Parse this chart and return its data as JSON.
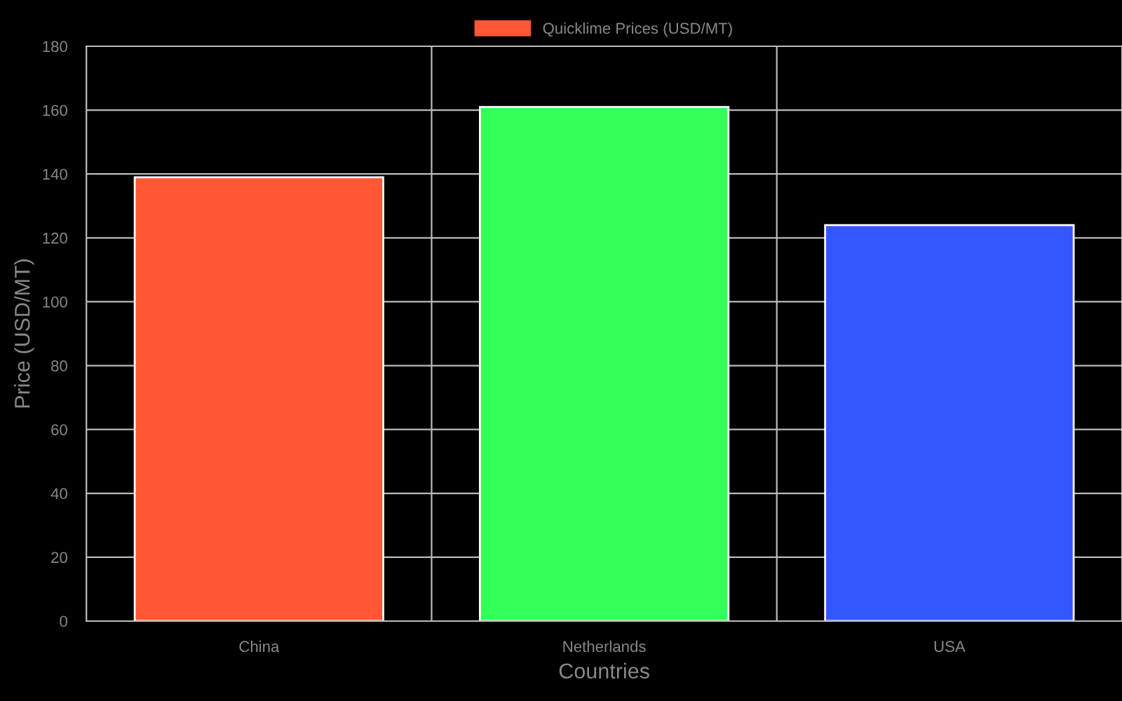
{
  "chart_data": {
    "type": "bar",
    "xlabel": "Countries",
    "ylabel": "Price (USD/MT)",
    "categories": [
      "China",
      "Netherlands",
      "USA"
    ],
    "series": [
      {
        "name": "Quicklime Prices (USD/MT)",
        "colors": [
          "#ff5733",
          "#33ff57",
          "#3357ff"
        ],
        "values": [
          139,
          161,
          124
        ]
      }
    ],
    "ylim": [
      0,
      180
    ],
    "yticks": [
      0,
      20,
      40,
      60,
      80,
      100,
      120,
      140,
      160,
      180
    ],
    "grid": true,
    "legend": "top"
  }
}
